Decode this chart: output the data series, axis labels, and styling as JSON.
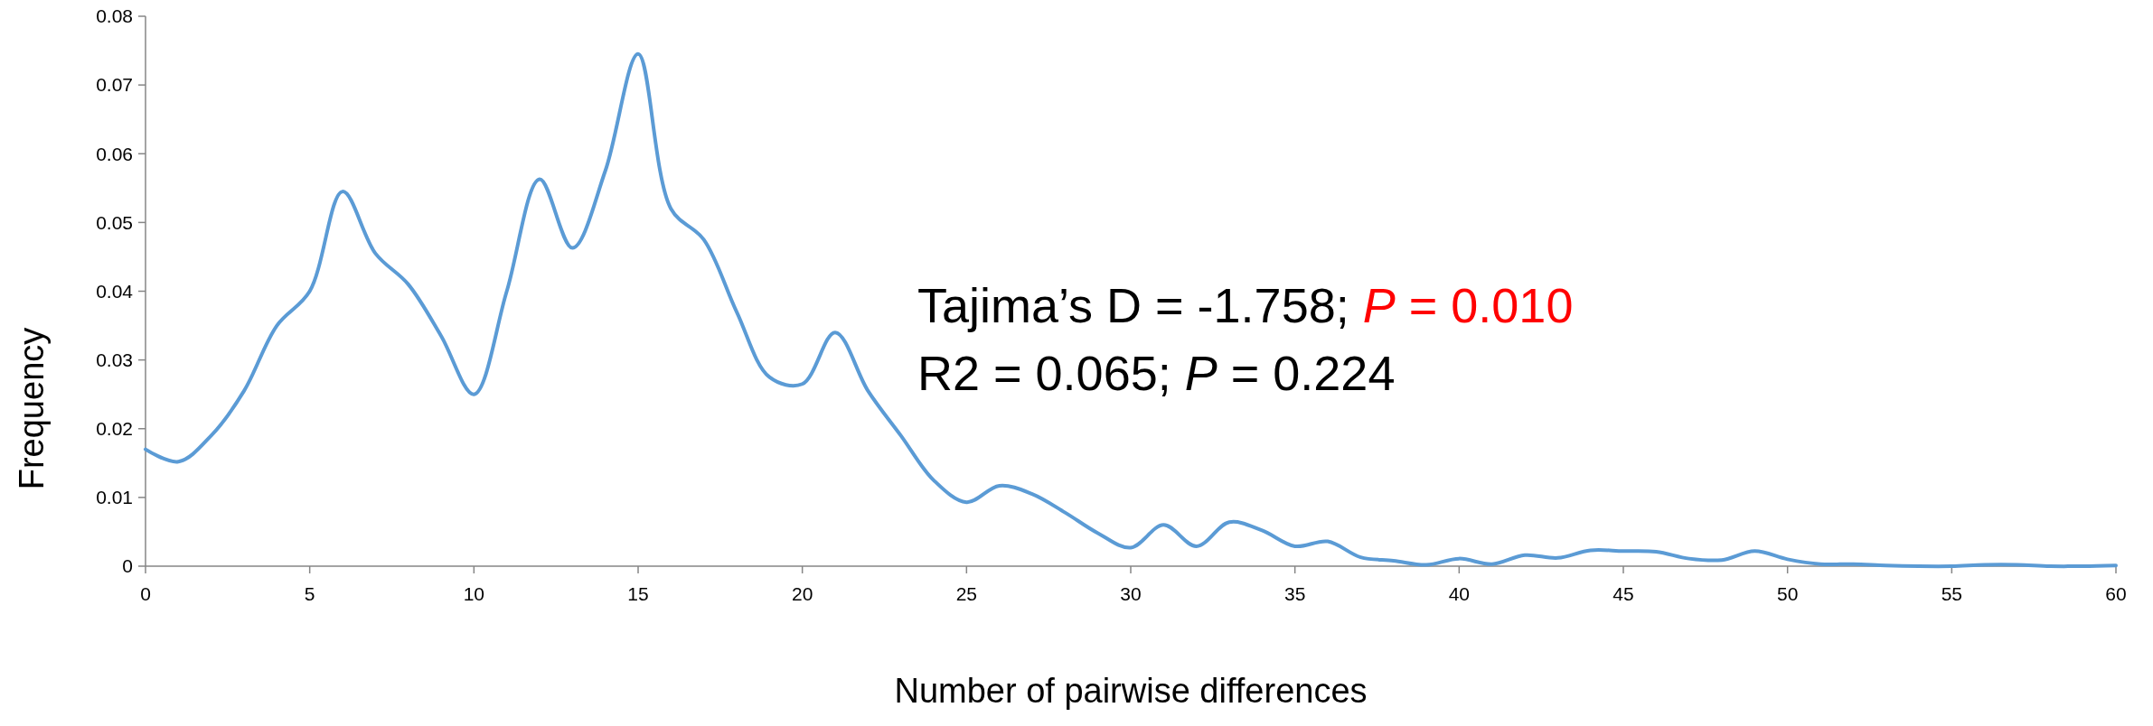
{
  "chart_data": {
    "type": "line",
    "xlabel": "Number of pairwise differences",
    "ylabel": "Frequency",
    "annotations": [
      "Tajima’s D = -1.758; P = 0.010",
      "R2 = 0.065; P = 0.224"
    ],
    "x": [
      0,
      1,
      2,
      3,
      4,
      5,
      6,
      7,
      8,
      9,
      10,
      11,
      12,
      13,
      14,
      15,
      16,
      17,
      18,
      19,
      20,
      21,
      22,
      23,
      24,
      25,
      26,
      27,
      28,
      29,
      30,
      31,
      32,
      33,
      34,
      35,
      36,
      37,
      38,
      39,
      40,
      41,
      42,
      43,
      44,
      45,
      46,
      47,
      48,
      49,
      50,
      51,
      52,
      53,
      54,
      55,
      56,
      57,
      58,
      59,
      60
    ],
    "series": [
      {
        "color": "#5b9bd5",
        "values": [
          0.017,
          0.0152,
          0.019,
          0.0255,
          0.035,
          0.04,
          0.0545,
          0.0455,
          0.041,
          0.0335,
          0.025,
          0.04,
          0.0563,
          0.0463,
          0.0575,
          0.0745,
          0.052,
          0.0475,
          0.037,
          0.0275,
          0.0265,
          0.034,
          0.0255,
          0.019,
          0.0125,
          0.0093,
          0.0117,
          0.0105,
          0.0078,
          0.0048,
          0.0027,
          0.006,
          0.0029,
          0.0064,
          0.0052,
          0.0029,
          0.0036,
          0.0013,
          0.0008,
          0.0002,
          0.0011,
          0.0003,
          0.0016,
          0.0012,
          0.0023,
          0.0022,
          0.0021,
          0.0011,
          0.0009,
          0.0022,
          0.001,
          0.0003,
          0.0003,
          0.0001,
          0,
          0,
          0.0002,
          0.0002,
          0,
          0,
          0.0001
        ]
      }
    ],
    "xlim": [
      0,
      60
    ],
    "xticks": [
      0,
      5,
      10,
      15,
      20,
      25,
      30,
      35,
      40,
      45,
      50,
      55,
      60
    ],
    "ylim": [
      0,
      0.08
    ],
    "yticks": [
      0,
      0.01,
      0.02,
      0.03,
      0.04,
      0.05,
      0.06,
      0.07,
      0.08
    ]
  }
}
